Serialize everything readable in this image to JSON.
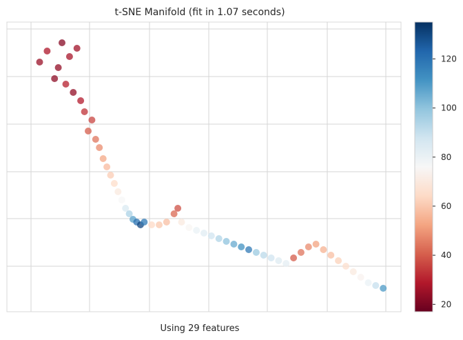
{
  "chart_data": {
    "type": "scatter",
    "title": "t-SNE Manifold (fit in 1.07 seconds)",
    "xlabel": "Using 29 features",
    "ylabel": "",
    "grid": true,
    "colormap": "RdBu",
    "colorbar": {
      "range": [
        17,
        135
      ],
      "ticks": [
        20,
        40,
        60,
        80,
        100,
        120
      ]
    },
    "colormap_stops": [
      "#67001f",
      "#b2182b",
      "#d6604d",
      "#f4a582",
      "#fddbc7",
      "#f7f7f7",
      "#d1e5f0",
      "#92c5de",
      "#4393c3",
      "#2166ac",
      "#053061"
    ],
    "x_grid_lines": 5,
    "y_grid_lines": 6,
    "points": [
      [
        0.06,
        0.88,
        25
      ],
      [
        0.11,
        0.86,
        24
      ],
      [
        0.08,
        0.92,
        28
      ],
      [
        0.12,
        0.95,
        22
      ],
      [
        0.14,
        0.9,
        27
      ],
      [
        0.16,
        0.93,
        26
      ],
      [
        0.1,
        0.82,
        23
      ],
      [
        0.13,
        0.8,
        30
      ],
      [
        0.15,
        0.77,
        24
      ],
      [
        0.17,
        0.74,
        29
      ],
      [
        0.18,
        0.7,
        33
      ],
      [
        0.2,
        0.67,
        36
      ],
      [
        0.19,
        0.63,
        40
      ],
      [
        0.21,
        0.6,
        44
      ],
      [
        0.22,
        0.57,
        48
      ],
      [
        0.23,
        0.53,
        53
      ],
      [
        0.24,
        0.5,
        57
      ],
      [
        0.25,
        0.47,
        61
      ],
      [
        0.26,
        0.44,
        65
      ],
      [
        0.27,
        0.41,
        70
      ],
      [
        0.28,
        0.38,
        76
      ],
      [
        0.29,
        0.35,
        85
      ],
      [
        0.3,
        0.33,
        95
      ],
      [
        0.31,
        0.31,
        108
      ],
      [
        0.32,
        0.3,
        120
      ],
      [
        0.33,
        0.29,
        130
      ],
      [
        0.34,
        0.3,
        118
      ],
      [
        0.36,
        0.29,
        64
      ],
      [
        0.38,
        0.29,
        60
      ],
      [
        0.4,
        0.3,
        58
      ],
      [
        0.42,
        0.33,
        42
      ],
      [
        0.43,
        0.35,
        38
      ],
      [
        0.44,
        0.3,
        70
      ],
      [
        0.46,
        0.28,
        75
      ],
      [
        0.48,
        0.27,
        80
      ],
      [
        0.5,
        0.26,
        83
      ],
      [
        0.52,
        0.25,
        88
      ],
      [
        0.54,
        0.24,
        94
      ],
      [
        0.56,
        0.23,
        100
      ],
      [
        0.58,
        0.22,
        106
      ],
      [
        0.6,
        0.21,
        112
      ],
      [
        0.62,
        0.2,
        118
      ],
      [
        0.64,
        0.19,
        98
      ],
      [
        0.66,
        0.18,
        92
      ],
      [
        0.68,
        0.17,
        88
      ],
      [
        0.7,
        0.16,
        84
      ],
      [
        0.72,
        0.15,
        82
      ],
      [
        0.74,
        0.17,
        40
      ],
      [
        0.76,
        0.19,
        44
      ],
      [
        0.78,
        0.21,
        48
      ],
      [
        0.8,
        0.22,
        52
      ],
      [
        0.82,
        0.2,
        55
      ],
      [
        0.84,
        0.18,
        58
      ],
      [
        0.86,
        0.16,
        62
      ],
      [
        0.88,
        0.14,
        66
      ],
      [
        0.9,
        0.12,
        70
      ],
      [
        0.92,
        0.1,
        74
      ],
      [
        0.94,
        0.08,
        80
      ],
      [
        0.96,
        0.07,
        90
      ],
      [
        0.98,
        0.06,
        110
      ]
    ]
  }
}
